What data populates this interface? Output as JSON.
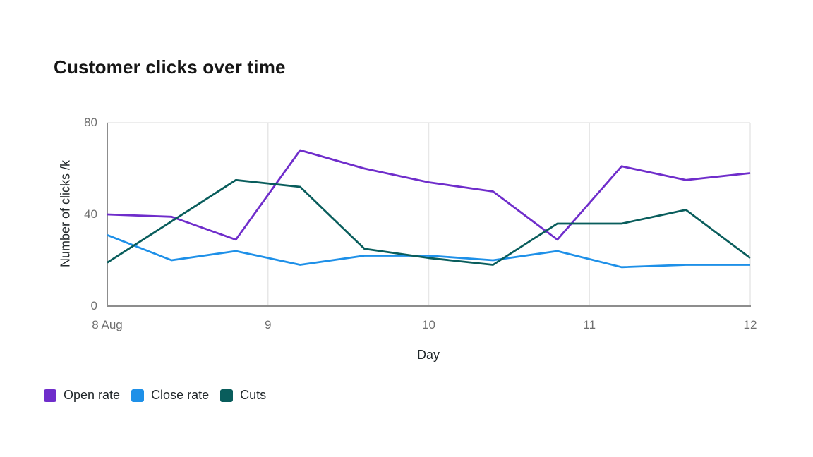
{
  "title": "Customer clicks over time",
  "chart_data": {
    "type": "line",
    "title": "Customer clicks over time",
    "xlabel": "Day",
    "ylabel": "Number of clicks /k",
    "x": [
      8,
      8.4,
      8.8,
      9.2,
      9.6,
      10,
      10.4,
      10.8,
      11.2,
      11.6,
      12
    ],
    "x_tick_labels": [
      "8 Aug",
      "9",
      "10",
      "11",
      "12"
    ],
    "x_tick_values": [
      8,
      9,
      10,
      11,
      12
    ],
    "y_tick_labels": [
      "0",
      "40",
      "80"
    ],
    "y_tick_values": [
      0,
      40,
      80
    ],
    "xlim": [
      8,
      12
    ],
    "ylim": [
      0,
      80
    ],
    "grid": {
      "vertical_at": [
        9,
        10,
        11,
        12
      ],
      "horizontal_at": [
        80
      ]
    },
    "legend_position": "bottom-left",
    "series": [
      {
        "name": "Open rate",
        "color": "#6f2dcb",
        "values": [
          40,
          39,
          29,
          68,
          60,
          54,
          50,
          29,
          61,
          55,
          58
        ]
      },
      {
        "name": "Close rate",
        "color": "#1e90e8",
        "values": [
          31,
          20,
          24,
          18,
          22,
          22,
          20,
          24,
          17,
          18,
          18
        ]
      },
      {
        "name": "Cuts",
        "color": "#095d5c",
        "values": [
          19,
          37,
          55,
          52,
          25,
          21,
          18,
          36,
          36,
          42,
          21
        ]
      }
    ]
  },
  "colors": {
    "axis_line": "#8d8d8d",
    "grid_line": "#e7e7e7",
    "tick_label": "#6f6f6f",
    "text": "#161616"
  }
}
